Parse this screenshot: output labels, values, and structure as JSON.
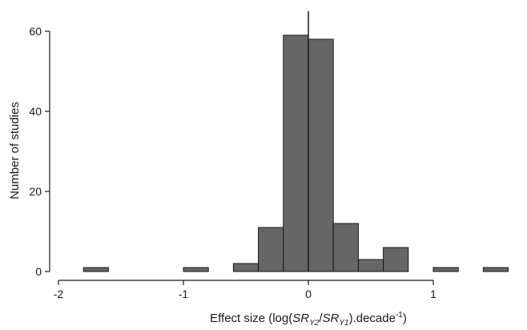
{
  "chart_data": {
    "type": "bar",
    "title": "",
    "xlabel": {
      "prefix": "Effect size (log(",
      "sr1": "SR",
      "sub1": "Y2",
      "slash": "/",
      "sr2": "SR",
      "sub2": "Y1",
      "mid": ").decade",
      "sup": "-1",
      "suffix": ")"
    },
    "ylabel": "Number of studies",
    "xlim": [
      -2.2,
      1.75
    ],
    "ylim": [
      0,
      62
    ],
    "xticks": [
      -2,
      -1,
      0,
      1
    ],
    "xtick_labels": [
      "-2",
      "-1",
      "0",
      "1"
    ],
    "yticks": [
      0,
      20,
      40,
      60
    ],
    "ytick_labels": [
      "0",
      "20",
      "40",
      "60"
    ],
    "bin_width": 0.2,
    "bins": [
      {
        "start": -1.8,
        "count": 1
      },
      {
        "start": -1.0,
        "count": 1
      },
      {
        "start": -0.6,
        "count": 2
      },
      {
        "start": -0.4,
        "count": 11
      },
      {
        "start": -0.2,
        "count": 59
      },
      {
        "start": 0.0,
        "count": 58
      },
      {
        "start": 0.2,
        "count": 12
      },
      {
        "start": 0.4,
        "count": 3
      },
      {
        "start": 0.6,
        "count": 6
      },
      {
        "start": 1.0,
        "count": 1
      },
      {
        "start": 1.4,
        "count": 1
      }
    ],
    "reference_line_x": 0,
    "colors": {
      "bar_fill": "#666666",
      "bar_stroke": "#1a1a1a",
      "axis": "#1a1a1a"
    }
  }
}
